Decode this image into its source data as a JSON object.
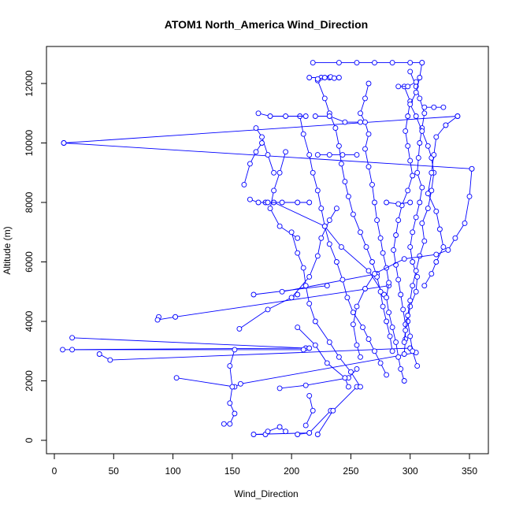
{
  "chart_data": {
    "type": "line",
    "title": "ATOM1 North_America Wind_Direction",
    "xlabel": "Wind_Direction",
    "ylabel": "Altitude (m)",
    "xlim": [
      0,
      355
    ],
    "ylim": [
      0,
      12800
    ],
    "x_ticks": [
      0,
      50,
      100,
      150,
      200,
      250,
      300,
      350
    ],
    "y_ticks": [
      0,
      2000,
      4000,
      6000,
      8000,
      10000,
      12000
    ],
    "grid": false,
    "style": {
      "color": "#0000ff",
      "marker": "open-circle",
      "line": "solid"
    },
    "series": [
      {
        "points": [
          [
            8,
            10000
          ],
          [
            352,
            9130
          ]
        ]
      },
      {
        "points": [
          [
            8,
            10000
          ],
          [
            340,
            10900
          ]
        ]
      },
      {
        "points": [
          [
            15,
            3450
          ],
          [
            212,
            3100
          ]
        ]
      },
      {
        "points": [
          [
            7,
            3050
          ],
          [
            215,
            3100
          ]
        ]
      },
      {
        "points": [
          [
            15,
            3050
          ],
          [
            210,
            3050
          ]
        ]
      },
      {
        "points": [
          [
            38,
            2900
          ],
          [
            47,
            2700
          ],
          [
            300,
            3100
          ]
        ]
      },
      {
        "points": [
          [
            88,
            4150
          ],
          [
            87,
            4050
          ],
          [
            102,
            4150
          ]
        ]
      },
      {
        "points": [
          [
            102,
            4150
          ],
          [
            282,
            5200
          ]
        ]
      },
      {
        "points": [
          [
            103,
            2100
          ],
          [
            152,
            1800
          ],
          [
            157,
            1900
          ],
          [
            305,
            2950
          ]
        ]
      },
      {
        "points": [
          [
            152,
            3050
          ],
          [
            148,
            2500
          ],
          [
            150,
            1800
          ],
          [
            148,
            1250
          ],
          [
            152,
            900
          ],
          [
            148,
            550
          ],
          [
            143,
            550
          ]
        ]
      },
      {
        "points": [
          [
            168,
            4900
          ],
          [
            230,
            5200
          ]
        ]
      },
      {
        "points": [
          [
            192,
            5000
          ],
          [
            272,
            5600
          ]
        ]
      },
      {
        "points": [
          [
            156,
            3750
          ],
          [
            180,
            4400
          ],
          [
            205,
            4900
          ]
        ]
      },
      {
        "points": [
          [
            215,
            250
          ],
          [
            168,
            200
          ],
          [
            178,
            200
          ]
        ]
      },
      {
        "points": [
          [
            180,
            300
          ],
          [
            190,
            450
          ],
          [
            195,
            300
          ]
        ]
      },
      {
        "points": [
          [
            205,
            200
          ],
          [
            215,
            250
          ],
          [
            233,
            1000
          ]
        ]
      },
      {
        "points": [
          [
            190,
            1750
          ],
          [
            212,
            1850
          ],
          [
            248,
            2100
          ],
          [
            255,
            2400
          ]
        ]
      },
      {
        "points": [
          [
            212,
            500
          ],
          [
            218,
            1000
          ],
          [
            215,
            1500
          ]
        ]
      },
      {
        "points": [
          [
            222,
            200
          ],
          [
            235,
            1000
          ],
          [
            255,
            1800
          ]
        ]
      },
      {
        "points": [
          [
            185,
            8000
          ],
          [
            228,
            7200
          ],
          [
            242,
            6500
          ],
          [
            265,
            5700
          ],
          [
            278,
            4900
          ]
        ]
      },
      {
        "points": [
          [
            205,
            3800
          ],
          [
            220,
            3200
          ],
          [
            230,
            2600
          ],
          [
            245,
            2100
          ],
          [
            248,
            1800
          ]
        ]
      },
      {
        "points": [
          [
            200,
            4800
          ],
          [
            215,
            5500
          ],
          [
            222,
            6200
          ],
          [
            225,
            6800
          ],
          [
            232,
            7400
          ],
          [
            238,
            7800
          ]
        ]
      },
      {
        "points": [
          [
            170,
            10500
          ],
          [
            175,
            10200
          ],
          [
            180,
            9600
          ],
          [
            185,
            9000
          ]
        ]
      },
      {
        "points": [
          [
            195,
            9700
          ],
          [
            190,
            9000
          ],
          [
            185,
            8400
          ],
          [
            182,
            7800
          ],
          [
            190,
            7200
          ],
          [
            205,
            6800
          ]
        ]
      },
      {
        "points": [
          [
            200,
            7000
          ],
          [
            205,
            6300
          ],
          [
            210,
            5800
          ],
          [
            212,
            5200
          ],
          [
            215,
            4600
          ],
          [
            220,
            4000
          ],
          [
            232,
            3300
          ],
          [
            240,
            2800
          ],
          [
            250,
            2300
          ],
          [
            258,
            1800
          ]
        ]
      },
      {
        "points": [
          [
            207,
            10900
          ],
          [
            210,
            10300
          ],
          [
            215,
            9600
          ],
          [
            218,
            9000
          ],
          [
            222,
            8400
          ],
          [
            225,
            7800
          ],
          [
            228,
            7200
          ],
          [
            232,
            6600
          ],
          [
            238,
            6000
          ],
          [
            243,
            5400
          ],
          [
            247,
            4800
          ],
          [
            252,
            4300
          ],
          [
            260,
            3800
          ],
          [
            265,
            3400
          ],
          [
            270,
            3000
          ],
          [
            275,
            2600
          ],
          [
            280,
            2200
          ]
        ]
      },
      {
        "points": [
          [
            222,
            12100
          ],
          [
            228,
            11500
          ],
          [
            232,
            11000
          ],
          [
            237,
            10500
          ],
          [
            240,
            9900
          ],
          [
            242,
            9300
          ],
          [
            245,
            8700
          ],
          [
            248,
            8200
          ],
          [
            252,
            7600
          ],
          [
            258,
            7000
          ],
          [
            263,
            6500
          ],
          [
            268,
            6000
          ],
          [
            272,
            5500
          ],
          [
            275,
            5000
          ],
          [
            277,
            4500
          ],
          [
            280,
            4000
          ],
          [
            283,
            3500
          ],
          [
            285,
            3000
          ]
        ]
      },
      {
        "points": [
          [
            265,
            12000
          ],
          [
            262,
            11500
          ],
          [
            258,
            11000
          ],
          [
            262,
            10700
          ],
          [
            265,
            10300
          ],
          [
            262,
            9800
          ],
          [
            265,
            9200
          ],
          [
            268,
            8600
          ],
          [
            270,
            8000
          ],
          [
            272,
            7400
          ],
          [
            275,
            6800
          ],
          [
            277,
            6300
          ],
          [
            280,
            5800
          ],
          [
            282,
            5300
          ],
          [
            280,
            4800
          ],
          [
            282,
            4300
          ],
          [
            285,
            3800
          ],
          [
            288,
            3300
          ],
          [
            290,
            2800
          ],
          [
            292,
            2400
          ],
          [
            295,
            2000
          ]
        ]
      },
      {
        "points": [
          [
            300,
            12400
          ],
          [
            305,
            11900
          ],
          [
            308,
            11500
          ],
          [
            312,
            11000
          ],
          [
            310,
            10500
          ],
          [
            308,
            10000
          ],
          [
            307,
            9500
          ],
          [
            306,
            9000
          ],
          [
            310,
            8500
          ],
          [
            308,
            8000
          ],
          [
            305,
            7500
          ],
          [
            302,
            7000
          ],
          [
            300,
            6500
          ],
          [
            302,
            6000
          ],
          [
            306,
            5500
          ],
          [
            305,
            5000
          ],
          [
            300,
            4500
          ],
          [
            298,
            4000
          ],
          [
            300,
            3500
          ],
          [
            302,
            3000
          ],
          [
            306,
            2500
          ]
        ]
      },
      {
        "points": [
          [
            295,
            11900
          ],
          [
            300,
            11400
          ],
          [
            298,
            10900
          ],
          [
            296,
            10400
          ],
          [
            298,
            9900
          ],
          [
            300,
            9400
          ],
          [
            302,
            8900
          ],
          [
            298,
            8400
          ],
          [
            293,
            7900
          ],
          [
            290,
            7400
          ],
          [
            288,
            6900
          ],
          [
            286,
            6400
          ],
          [
            288,
            5900
          ],
          [
            290,
            5400
          ],
          [
            292,
            4900
          ],
          [
            294,
            4400
          ],
          [
            296,
            3900
          ],
          [
            296,
            3400
          ],
          [
            295,
            2900
          ]
        ]
      },
      {
        "points": [
          [
            310,
            12700
          ],
          [
            308,
            12200
          ],
          [
            305,
            11700
          ],
          [
            300,
            11300
          ],
          [
            305,
            10900
          ],
          [
            310,
            10400
          ],
          [
            315,
            9900
          ],
          [
            318,
            9500
          ],
          [
            320,
            9000
          ],
          [
            318,
            8400
          ],
          [
            315,
            7800
          ],
          [
            310,
            7300
          ],
          [
            312,
            6700
          ],
          [
            308,
            6200
          ],
          [
            305,
            5700
          ],
          [
            302,
            5200
          ],
          [
            300,
            4700
          ],
          [
            298,
            4200
          ],
          [
            296,
            3700
          ],
          [
            295,
            3300
          ]
        ]
      },
      {
        "points": [
          [
            330,
            10600
          ],
          [
            322,
            10200
          ],
          [
            320,
            9600
          ],
          [
            318,
            9000
          ],
          [
            315,
            8300
          ],
          [
            322,
            7700
          ],
          [
            325,
            7100
          ],
          [
            328,
            6500
          ],
          [
            322,
            6000
          ],
          [
            318,
            5600
          ],
          [
            312,
            5200
          ]
        ]
      },
      {
        "points": [
          [
            352,
            9130
          ],
          [
            350,
            8200
          ],
          [
            346,
            7300
          ],
          [
            338,
            6800
          ],
          [
            332,
            6400
          ],
          [
            322,
            6250
          ],
          [
            295,
            6100
          ],
          [
            270,
            5600
          ],
          [
            262,
            5100
          ],
          [
            255,
            4500
          ],
          [
            252,
            3900
          ],
          [
            255,
            3200
          ],
          [
            258,
            2800
          ]
        ]
      },
      {
        "points": [
          [
            340,
            10900
          ],
          [
            330,
            10600
          ]
        ]
      },
      {
        "points": [
          [
            218,
            12700
          ],
          [
            240,
            12700
          ],
          [
            255,
            12700
          ],
          [
            270,
            12700
          ],
          [
            285,
            12700
          ],
          [
            300,
            12700
          ],
          [
            310,
            12700
          ]
        ]
      },
      {
        "points": [
          [
            215,
            12200
          ],
          [
            225,
            12200
          ],
          [
            232,
            12200
          ],
          [
            240,
            12200
          ]
        ]
      },
      {
        "points": [
          [
            222,
            12150
          ],
          [
            228,
            12200
          ],
          [
            233,
            12220
          ],
          [
            236,
            12180
          ]
        ]
      },
      {
        "points": [
          [
            178,
            8000
          ],
          [
            192,
            8000
          ],
          [
            205,
            8000
          ],
          [
            215,
            8000
          ]
        ]
      },
      {
        "points": [
          [
            280,
            8000
          ],
          [
            290,
            7950
          ],
          [
            300,
            8000
          ]
        ]
      },
      {
        "points": [
          [
            172,
            11000
          ],
          [
            182,
            10900
          ],
          [
            195,
            10900
          ],
          [
            212,
            10900
          ]
        ]
      },
      {
        "points": [
          [
            220,
            10900
          ],
          [
            232,
            10900
          ],
          [
            245,
            10700
          ],
          [
            258,
            10700
          ]
        ]
      },
      {
        "points": [
          [
            222,
            9600
          ],
          [
            232,
            9600
          ],
          [
            243,
            9600
          ],
          [
            255,
            9600
          ]
        ]
      },
      {
        "points": [
          [
            160,
            8600
          ],
          [
            165,
            9300
          ],
          [
            170,
            9700
          ],
          [
            175,
            10000
          ]
        ]
      },
      {
        "points": [
          [
            165,
            8100
          ],
          [
            172,
            8000
          ],
          [
            180,
            8000
          ]
        ]
      },
      {
        "points": [
          [
            290,
            11900
          ],
          [
            298,
            11900
          ],
          [
            305,
            12050
          ]
        ]
      },
      {
        "points": [
          [
            312,
            11200
          ],
          [
            320,
            11200
          ],
          [
            328,
            11200
          ]
        ]
      }
    ]
  }
}
